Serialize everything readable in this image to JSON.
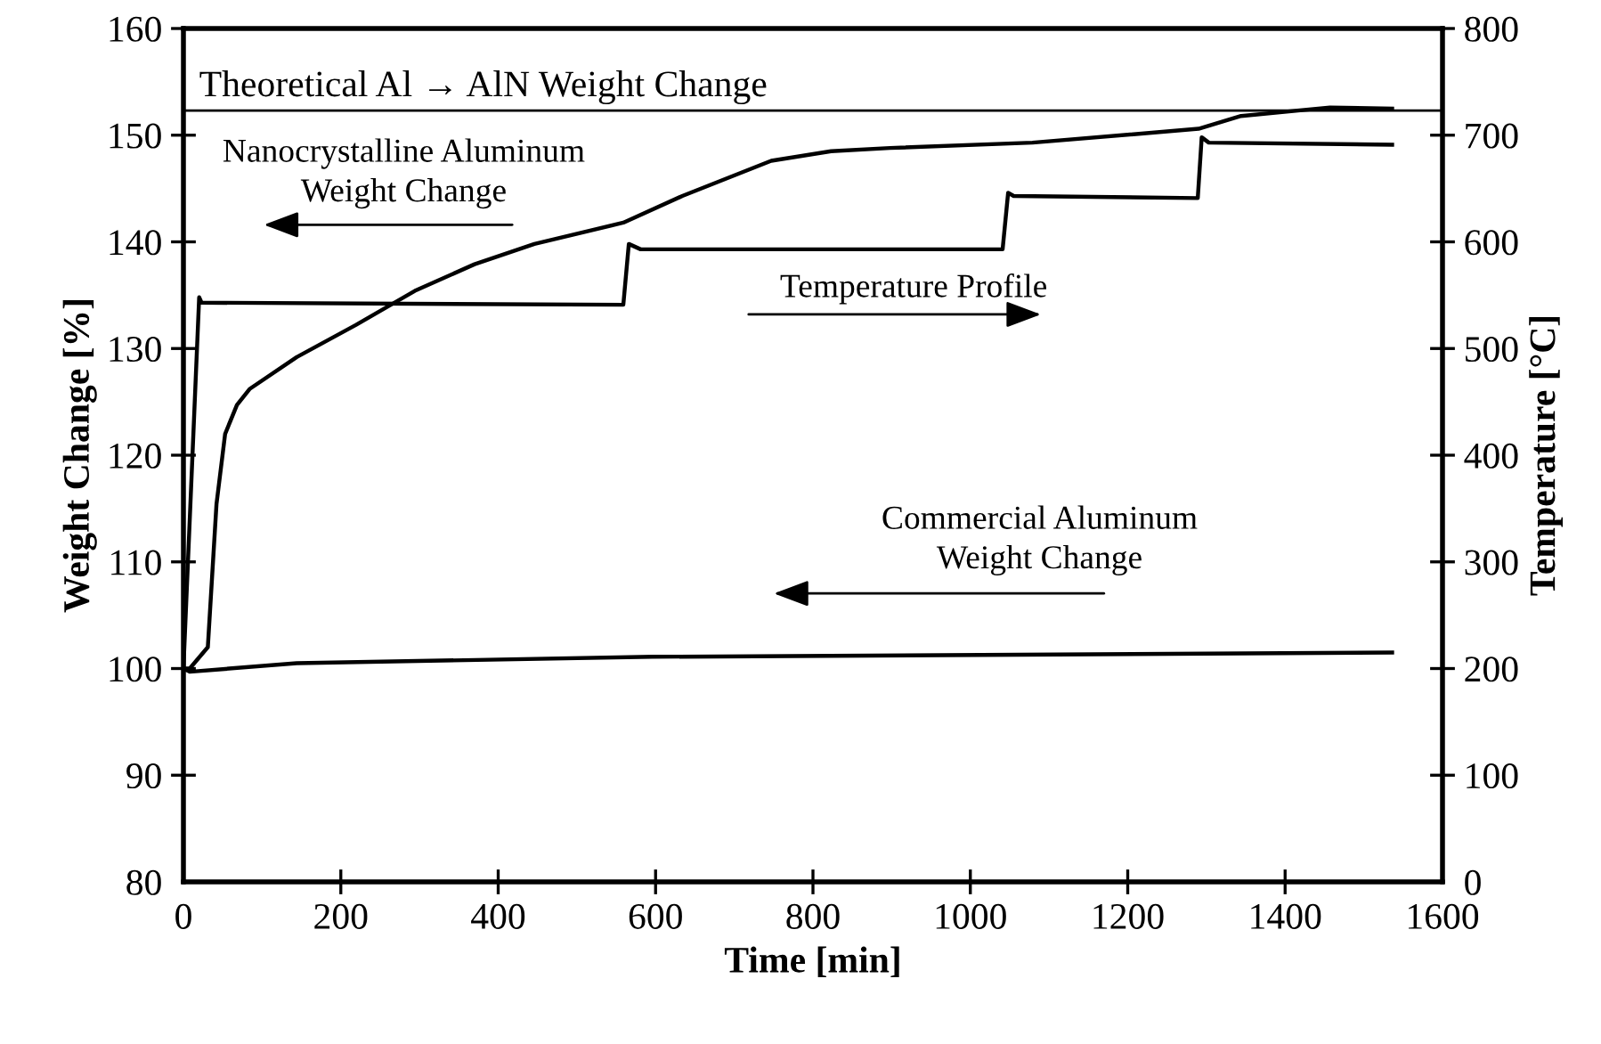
{
  "chart_data": {
    "type": "line",
    "xlabel": "Time [min]",
    "ylabel": "Weight Change [%]",
    "y2label": "Temperature [°C]",
    "xlim": [
      0,
      1600
    ],
    "xticks": [
      0,
      200,
      400,
      600,
      800,
      1000,
      1200,
      1400,
      1600
    ],
    "ylim": [
      80,
      160
    ],
    "yticks": [
      80,
      90,
      100,
      110,
      120,
      130,
      140,
      150,
      160
    ],
    "y2lim": [
      0,
      800
    ],
    "y2ticks": [
      0,
      100,
      200,
      300,
      400,
      500,
      600,
      700,
      800
    ],
    "grid": false,
    "legend": false,
    "marker": "none",
    "line_style": "solid",
    "series": [
      {
        "color": "#000000",
        "x": [
          0,
          8,
          31,
          42,
          53,
          68,
          84,
          144,
          219,
          294,
          370,
          446,
          559,
          634,
          747,
          823,
          898,
          1079,
          1290,
          1344,
          1457,
          1536
        ],
        "values": [
          100,
          100,
          102,
          115.4,
          122,
          124.7,
          126.2,
          129.2,
          132.2,
          135.4,
          137.9,
          139.8,
          141.8,
          144.3,
          147.6,
          148.5,
          148.8,
          149.3,
          150.6,
          151.8,
          152.6,
          152.5
        ]
      },
      {
        "color": "#000000",
        "x": [
          0,
          8,
          144,
          596,
          1536
        ],
        "values": [
          100,
          99.7,
          100.5,
          101.1,
          101.5
        ]
      },
      {
        "color": "#000000",
        "axis": "y2",
        "x": [
          0,
          20,
          23,
          559,
          566,
          581,
          1041,
          1048,
          1055,
          1289,
          1294,
          1303,
          1536
        ],
        "values": [
          200,
          548,
          543,
          541,
          598,
          593,
          593,
          646,
          643,
          641,
          698,
          693,
          691
        ]
      }
    ],
    "ref_lines": [
      {
        "axis": "y",
        "value": 152.3,
        "label": "Theoretical Al → AlN Weight Change",
        "color": "#000000"
      }
    ],
    "annotations": [
      "Nanocrystalline Aluminum\nWeight Change",
      "Temperature Profile",
      "Commercial Aluminum\nWeight Change"
    ]
  }
}
